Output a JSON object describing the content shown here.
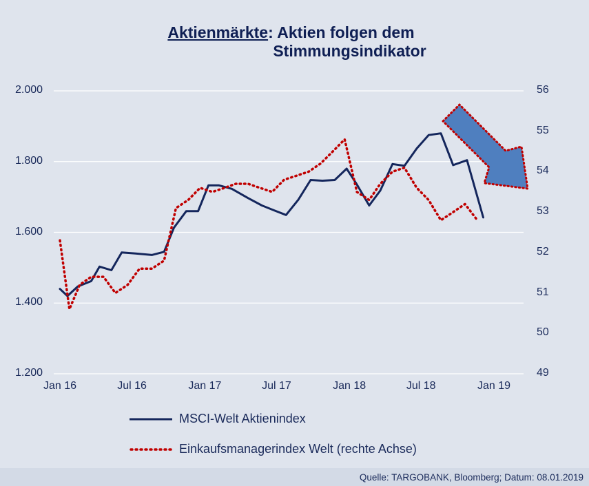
{
  "title": {
    "underlined": "Aktienmärkte",
    "line1_rest": ": Aktien folgen dem",
    "line2": "Stimmungsindikator"
  },
  "footer": "Quelle: TARGOBANK, Bloomberg; Datum: 08.01.2019",
  "chart_data": {
    "type": "line",
    "title": "Aktienmärkte: Aktien folgen dem Stimmungsindikator",
    "x_ticks": [
      "Jan 16",
      "Jul 16",
      "Jan 17",
      "Jul 17",
      "Jan 18",
      "Jul 18",
      "Jan 19"
    ],
    "x_range": [
      "2016-01",
      "2019-01"
    ],
    "y_left": {
      "range": [
        1200,
        2000
      ],
      "ticks": [
        "1.200",
        "1.400",
        "1.600",
        "1.800",
        "2.000"
      ],
      "tick_values": [
        1200,
        1400,
        1600,
        1800,
        2000
      ]
    },
    "y_right": {
      "range": [
        49,
        56
      ],
      "ticks": [
        "49",
        "50",
        "51",
        "52",
        "53",
        "54",
        "55",
        "56"
      ],
      "tick_values": [
        49,
        50,
        51,
        52,
        53,
        54,
        55,
        56
      ]
    },
    "grid": "horizontal",
    "legend_position": "bottom",
    "annotation": "downward-arrow",
    "series": [
      {
        "name": "MSCI-Welt Aktienindex",
        "axis": "left",
        "color": "#14265c",
        "style": "solid",
        "points": [
          [
            "2016-01-01",
            1440
          ],
          [
            "2016-01-20",
            1420
          ],
          [
            "2016-02-15",
            1447
          ],
          [
            "2016-03-20",
            1462
          ],
          [
            "2016-04-10",
            1503
          ],
          [
            "2016-05-10",
            1493
          ],
          [
            "2016-06-05",
            1543
          ],
          [
            "2016-07-10",
            1540
          ],
          [
            "2016-08-20",
            1536
          ],
          [
            "2016-09-20",
            1545
          ],
          [
            "2016-10-15",
            1613
          ],
          [
            "2016-11-15",
            1660
          ],
          [
            "2016-12-15",
            1660
          ],
          [
            "2017-01-10",
            1733
          ],
          [
            "2017-02-05",
            1733
          ],
          [
            "2017-03-10",
            1723
          ],
          [
            "2017-04-20",
            1697
          ],
          [
            "2017-05-25",
            1676
          ],
          [
            "2017-06-25",
            1662
          ],
          [
            "2017-07-25",
            1649
          ],
          [
            "2017-08-25",
            1692
          ],
          [
            "2017-09-25",
            1748
          ],
          [
            "2017-10-25",
            1746
          ],
          [
            "2017-11-25",
            1748
          ],
          [
            "2017-12-25",
            1780
          ],
          [
            "2018-01-20",
            1735
          ],
          [
            "2018-02-20",
            1676
          ],
          [
            "2018-03-20",
            1718
          ],
          [
            "2018-04-20",
            1793
          ],
          [
            "2018-05-20",
            1788
          ],
          [
            "2018-06-20",
            1837
          ],
          [
            "2018-07-20",
            1875
          ],
          [
            "2018-08-20",
            1880
          ],
          [
            "2018-09-20",
            1790
          ],
          [
            "2018-10-25",
            1804
          ],
          [
            "2018-12-05",
            1642
          ]
        ]
      },
      {
        "name": "Einkaufsmanagerindex Welt (rechte Achse)",
        "axis": "right",
        "color": "#c00000",
        "style": "dotted",
        "points": [
          [
            "2016-01-01",
            52.3
          ],
          [
            "2016-01-25",
            50.6
          ],
          [
            "2016-02-20",
            51.2
          ],
          [
            "2016-03-20",
            51.4
          ],
          [
            "2016-04-20",
            51.4
          ],
          [
            "2016-05-20",
            51.0
          ],
          [
            "2016-06-20",
            51.2
          ],
          [
            "2016-07-20",
            51.6
          ],
          [
            "2016-08-20",
            51.6
          ],
          [
            "2016-09-20",
            51.8
          ],
          [
            "2016-10-20",
            53.1
          ],
          [
            "2016-11-20",
            53.3
          ],
          [
            "2016-12-20",
            53.6
          ],
          [
            "2017-01-20",
            53.5
          ],
          [
            "2017-02-20",
            53.6
          ],
          [
            "2017-03-20",
            53.7
          ],
          [
            "2017-04-20",
            53.7
          ],
          [
            "2017-05-20",
            53.6
          ],
          [
            "2017-06-20",
            53.5
          ],
          [
            "2017-07-20",
            53.8
          ],
          [
            "2017-08-20",
            53.9
          ],
          [
            "2017-09-20",
            54.0
          ],
          [
            "2017-10-20",
            54.2
          ],
          [
            "2017-11-20",
            54.5
          ],
          [
            "2017-12-20",
            54.8
          ],
          [
            "2018-01-20",
            53.5
          ],
          [
            "2018-02-20",
            53.3
          ],
          [
            "2018-03-20",
            53.7
          ],
          [
            "2018-04-20",
            54.0
          ],
          [
            "2018-05-20",
            54.1
          ],
          [
            "2018-06-20",
            53.6
          ],
          [
            "2018-07-20",
            53.3
          ],
          [
            "2018-08-20",
            52.8
          ],
          [
            "2018-09-20",
            53.0
          ],
          [
            "2018-10-20",
            53.2
          ],
          [
            "2018-11-20",
            52.8
          ]
        ]
      }
    ]
  }
}
